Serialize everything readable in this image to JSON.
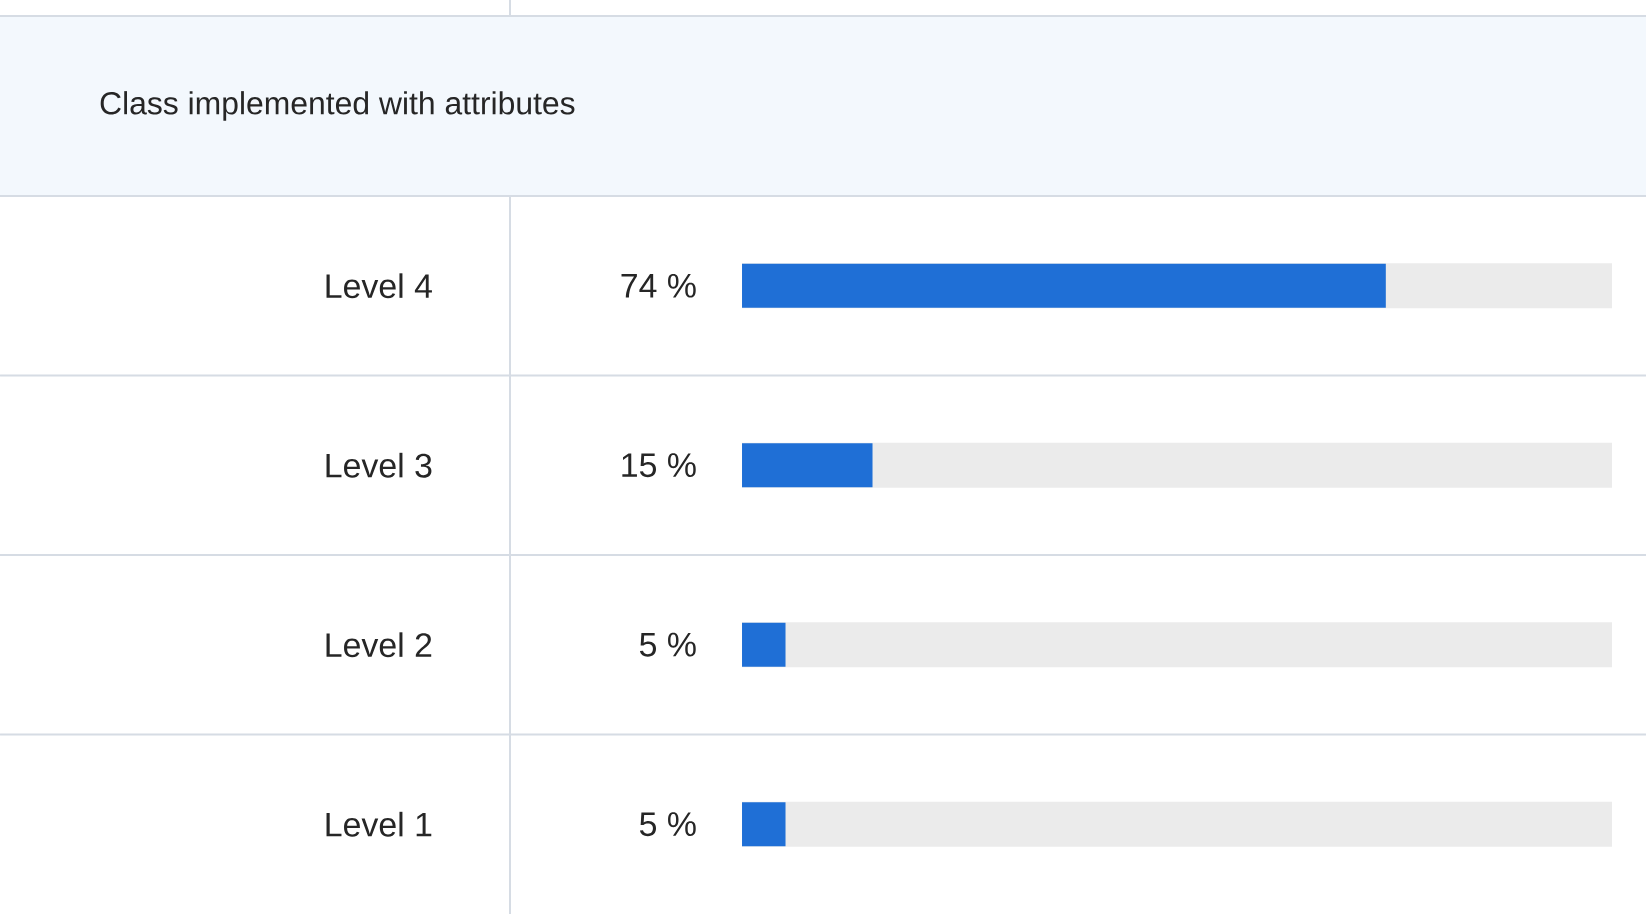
{
  "chart_data": {
    "type": "bar",
    "orientation": "horizontal",
    "title": "Class implemented with attributes",
    "categories": [
      "Level 4",
      "Level 3",
      "Level 2",
      "Level 1"
    ],
    "values": [
      74,
      15,
      5,
      5
    ],
    "value_labels": [
      "74 %",
      "15 %",
      "5 %",
      "5 %"
    ],
    "color": "#1f6fd6",
    "xlim": [
      0,
      100
    ],
    "tick_labels": "y"
  }
}
